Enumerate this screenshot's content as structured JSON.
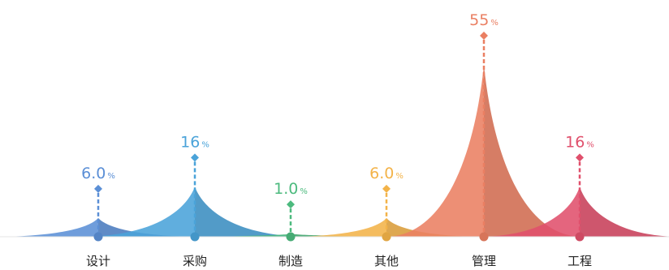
{
  "chart_data": {
    "type": "area",
    "title": "",
    "xlabel": "",
    "ylabel": "",
    "ylim": [
      0,
      55
    ],
    "grid": false,
    "legend": "none",
    "categories": [
      "设计",
      "采购",
      "制造",
      "其他",
      "管理",
      "工程"
    ],
    "values": [
      6.0,
      16,
      1.0,
      6.0,
      55,
      16
    ],
    "value_labels": [
      "6.0",
      "16",
      "1.0",
      "6.0",
      "55",
      "16"
    ],
    "unit": "%",
    "colors": [
      "#5b8fd6",
      "#4aa3d9",
      "#4cba7e",
      "#f3b349",
      "#ea7f62",
      "#e0506c"
    ]
  }
}
